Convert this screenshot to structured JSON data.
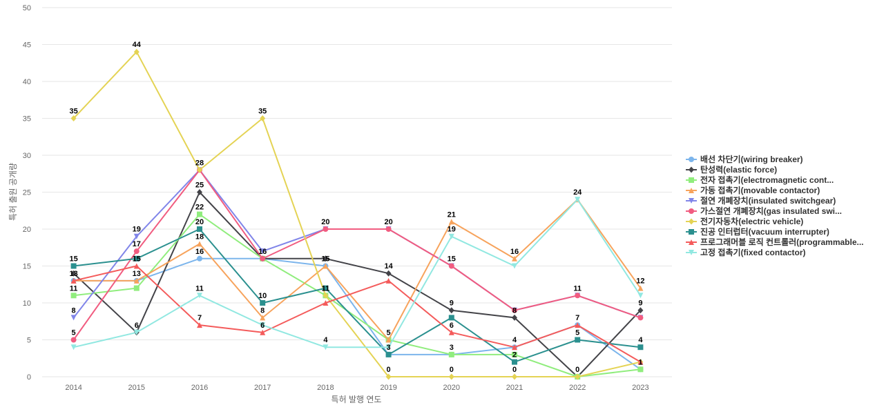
{
  "chart_data": {
    "type": "line",
    "title": "",
    "xlabel": "특허 발행 연도",
    "ylabel": "특허 출원 공개량",
    "ylim": [
      0,
      50
    ],
    "yticks": [
      0,
      5,
      10,
      15,
      20,
      25,
      30,
      35,
      40,
      45,
      50
    ],
    "categories": [
      "2014",
      "2015",
      "2016",
      "2017",
      "2018",
      "2019",
      "2020",
      "2021",
      "2022",
      "2023"
    ],
    "legend_position": "right",
    "series": [
      {
        "name": "배선 차단기(wiring breaker)",
        "color": "#7cb5ec",
        "marker": "circle",
        "values": [
          13,
          13,
          16,
          16,
          15,
          3,
          3,
          4,
          7,
          1
        ]
      },
      {
        "name": "탄성력(elastic force)",
        "color": "#434348",
        "marker": "diamond",
        "values": [
          14,
          6,
          25,
          16,
          16,
          14,
          9,
          8,
          0,
          9
        ]
      },
      {
        "name": "전자 접촉기(electromagnetic cont...",
        "color": "#90ed7d",
        "marker": "square",
        "values": [
          11,
          12,
          22,
          16,
          11,
          5,
          3,
          3,
          0,
          1
        ]
      },
      {
        "name": "가동 접촉기(movable contactor)",
        "color": "#f7a35c",
        "marker": "triangle",
        "values": [
          13,
          13,
          18,
          8,
          15,
          5,
          21,
          16,
          24,
          12
        ]
      },
      {
        "name": "절연 개폐장치(insulated switchgear)",
        "color": "#8085e9",
        "marker": "triangle-down",
        "values": [
          8,
          19,
          28,
          17,
          20,
          20,
          15,
          9,
          11,
          8
        ]
      },
      {
        "name": "가스절연 개폐장치(gas insulated swi...",
        "color": "#f15c80",
        "marker": "circle",
        "values": [
          5,
          17,
          28,
          16,
          20,
          20,
          15,
          9,
          11,
          8
        ]
      },
      {
        "name": "전기자동차(electric vehicle)",
        "color": "#e4d354",
        "marker": "diamond",
        "values": [
          35,
          44,
          28,
          35,
          11,
          0,
          0,
          0,
          0,
          2
        ]
      },
      {
        "name": "진공 인터럽터(vacuum interrupter)",
        "color": "#2b908f",
        "marker": "square",
        "values": [
          15,
          16,
          20,
          10,
          12,
          3,
          8,
          2,
          5,
          4
        ]
      },
      {
        "name": "프로그래머블 로직 컨트롤러(programmable...",
        "color": "#f45b5b",
        "marker": "triangle",
        "values": [
          13,
          15,
          7,
          6,
          10,
          13,
          6,
          4,
          7,
          2
        ]
      },
      {
        "name": "고정 접촉기(fixed contactor)",
        "color": "#91e8e1",
        "marker": "triangle-down",
        "values": [
          4,
          6,
          11,
          7,
          4,
          4,
          19,
          15,
          24,
          11
        ]
      }
    ],
    "data_labels": [
      {
        "text": "35",
        "category": "2014",
        "value": 35
      },
      {
        "text": "15",
        "category": "2014",
        "value": 15
      },
      {
        "text": "13",
        "category": "2014",
        "value": 13
      },
      {
        "text": "11",
        "category": "2014",
        "value": 11
      },
      {
        "text": "8",
        "category": "2014",
        "value": 8
      },
      {
        "text": "5",
        "category": "2014",
        "value": 5
      },
      {
        "text": "44",
        "category": "2015",
        "value": 44
      },
      {
        "text": "19",
        "category": "2015",
        "value": 19
      },
      {
        "text": "17",
        "category": "2015",
        "value": 17
      },
      {
        "text": "15",
        "category": "2015",
        "value": 15
      },
      {
        "text": "13",
        "category": "2015",
        "value": 13
      },
      {
        "text": "6",
        "category": "2015",
        "value": 6
      },
      {
        "text": "28",
        "category": "2016",
        "value": 28
      },
      {
        "text": "25",
        "category": "2016",
        "value": 25
      },
      {
        "text": "22",
        "category": "2016",
        "value": 22
      },
      {
        "text": "20",
        "category": "2016",
        "value": 20
      },
      {
        "text": "18",
        "category": "2016",
        "value": 18
      },
      {
        "text": "16",
        "category": "2016",
        "value": 16
      },
      {
        "text": "11",
        "category": "2016",
        "value": 11
      },
      {
        "text": "7",
        "category": "2016",
        "value": 7
      },
      {
        "text": "35",
        "category": "2017",
        "value": 35
      },
      {
        "text": "16",
        "category": "2017",
        "value": 16
      },
      {
        "text": "10",
        "category": "2017",
        "value": 10
      },
      {
        "text": "8",
        "category": "2017",
        "value": 8
      },
      {
        "text": "6",
        "category": "2017",
        "value": 6
      },
      {
        "text": "20",
        "category": "2018",
        "value": 20
      },
      {
        "text": "15",
        "category": "2018",
        "value": 15
      },
      {
        "text": "11",
        "category": "2018",
        "value": 11
      },
      {
        "text": "4",
        "category": "2018",
        "value": 4
      },
      {
        "text": "20",
        "category": "2019",
        "value": 20
      },
      {
        "text": "14",
        "category": "2019",
        "value": 14
      },
      {
        "text": "5",
        "category": "2019",
        "value": 5
      },
      {
        "text": "3",
        "category": "2019",
        "value": 3
      },
      {
        "text": "0",
        "category": "2019",
        "value": 0
      },
      {
        "text": "21",
        "category": "2020",
        "value": 21
      },
      {
        "text": "19",
        "category": "2020",
        "value": 19
      },
      {
        "text": "15",
        "category": "2020",
        "value": 15
      },
      {
        "text": "9",
        "category": "2020",
        "value": 9
      },
      {
        "text": "6",
        "category": "2020",
        "value": 6
      },
      {
        "text": "3",
        "category": "2020",
        "value": 3
      },
      {
        "text": "0",
        "category": "2020",
        "value": 0
      },
      {
        "text": "16",
        "category": "2021",
        "value": 16
      },
      {
        "text": "8",
        "category": "2021",
        "value": 8
      },
      {
        "text": "4",
        "category": "2021",
        "value": 4
      },
      {
        "text": "2",
        "category": "2021",
        "value": 2
      },
      {
        "text": "0",
        "category": "2021",
        "value": 0
      },
      {
        "text": "24",
        "category": "2022",
        "value": 24
      },
      {
        "text": "11",
        "category": "2022",
        "value": 11
      },
      {
        "text": "7",
        "category": "2022",
        "value": 7
      },
      {
        "text": "5",
        "category": "2022",
        "value": 5
      },
      {
        "text": "0",
        "category": "2022",
        "value": 0
      },
      {
        "text": "12",
        "category": "2023",
        "value": 12
      },
      {
        "text": "9",
        "category": "2023",
        "value": 9
      },
      {
        "text": "4",
        "category": "2023",
        "value": 4
      },
      {
        "text": "1",
        "category": "2023",
        "value": 1
      }
    ]
  }
}
